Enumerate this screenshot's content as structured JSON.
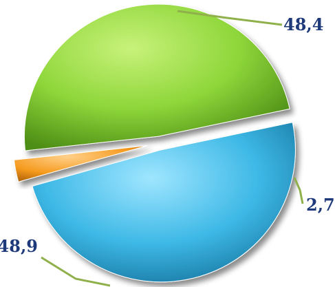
{
  "chart_data": {
    "type": "pie",
    "categories": [
      "",
      "",
      ""
    ],
    "values": [
      48.4,
      2.7,
      48.9
    ],
    "data_labels": [
      "48,4",
      "2,7",
      "48,9"
    ],
    "colors": [
      "#8ED63A",
      "#F59A1E",
      "#3DB8E6"
    ],
    "leader_line_color": "#8FB04A",
    "legend": "none",
    "style": "3d-exploded"
  }
}
